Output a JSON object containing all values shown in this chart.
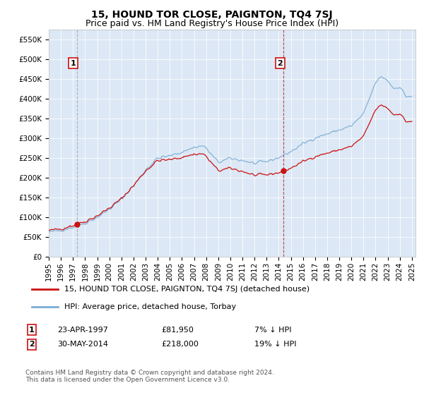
{
  "title": "15, HOUND TOR CLOSE, PAIGNTON, TQ4 7SJ",
  "subtitle": "Price paid vs. HM Land Registry's House Price Index (HPI)",
  "ylabel_ticks": [
    "£0",
    "£50K",
    "£100K",
    "£150K",
    "£200K",
    "£250K",
    "£300K",
    "£350K",
    "£400K",
    "£450K",
    "£500K",
    "£550K"
  ],
  "ylim": [
    0,
    575000
  ],
  "ytick_vals": [
    0,
    50000,
    100000,
    150000,
    200000,
    250000,
    300000,
    350000,
    400000,
    450000,
    500000,
    550000
  ],
  "plot_bg": "#dce8f5",
  "hpi_color": "#7aadd4",
  "price_color": "#cc1111",
  "vline1_color": "#999999",
  "vline2_color": "#cc1111",
  "sale1_year": 1997.31,
  "sale1_price": 81950,
  "sale2_year": 2014.41,
  "sale2_price": 218000,
  "legend_label1": "15, HOUND TOR CLOSE, PAIGNTON, TQ4 7SJ (detached house)",
  "legend_label2": "HPI: Average price, detached house, Torbay",
  "annotation1_label": "1",
  "annotation1_date": "23-APR-1997",
  "annotation1_price": "£81,950",
  "annotation1_hpi": "7% ↓ HPI",
  "annotation2_label": "2",
  "annotation2_date": "30-MAY-2014",
  "annotation2_price": "£218,000",
  "annotation2_hpi": "19% ↓ HPI",
  "footer": "Contains HM Land Registry data © Crown copyright and database right 2024.\nThis data is licensed under the Open Government Licence v3.0.",
  "title_fontsize": 10,
  "subtitle_fontsize": 9,
  "tick_fontsize": 7.5,
  "legend_fontsize": 8,
  "annotation_fontsize": 8,
  "footer_fontsize": 6.5
}
